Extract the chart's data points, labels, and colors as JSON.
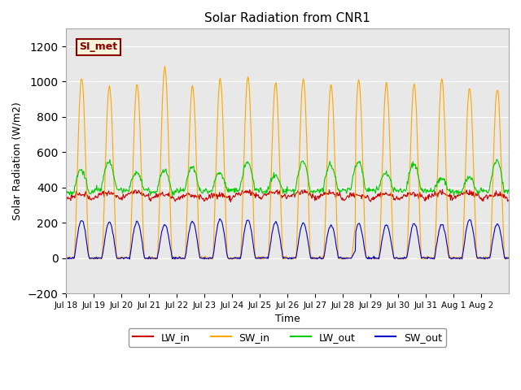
{
  "title": "Solar Radiation from CNR1",
  "xlabel": "Time",
  "ylabel": "Solar Radiation (W/m2)",
  "ylim": [
    -200,
    1300
  ],
  "yticks": [
    -200,
    0,
    200,
    400,
    600,
    800,
    1000,
    1200
  ],
  "background_color": "#ffffff",
  "plot_bg_color": "#e8e8e8",
  "grid_color": "#ffffff",
  "date_labels": [
    "Jul 18",
    "Jul 19",
    "Jul 20",
    "Jul 21",
    "Jul 22",
    "Jul 23",
    "Jul 24",
    "Jul 25",
    "Jul 26",
    "Jul 27",
    "Jul 28",
    "Jul 29",
    "Jul 30",
    "Jul 31",
    "Aug 1",
    "Aug 2"
  ],
  "legend_label": "SI_met",
  "legend_bg": "#f5f5dc",
  "legend_border": "#8b0000",
  "colors": {
    "LW_in": "#cc0000",
    "SW_in": "#ffa500",
    "LW_out": "#00cc00",
    "SW_out": "#0000cc"
  },
  "n_days": 16,
  "points_per_day": 48
}
